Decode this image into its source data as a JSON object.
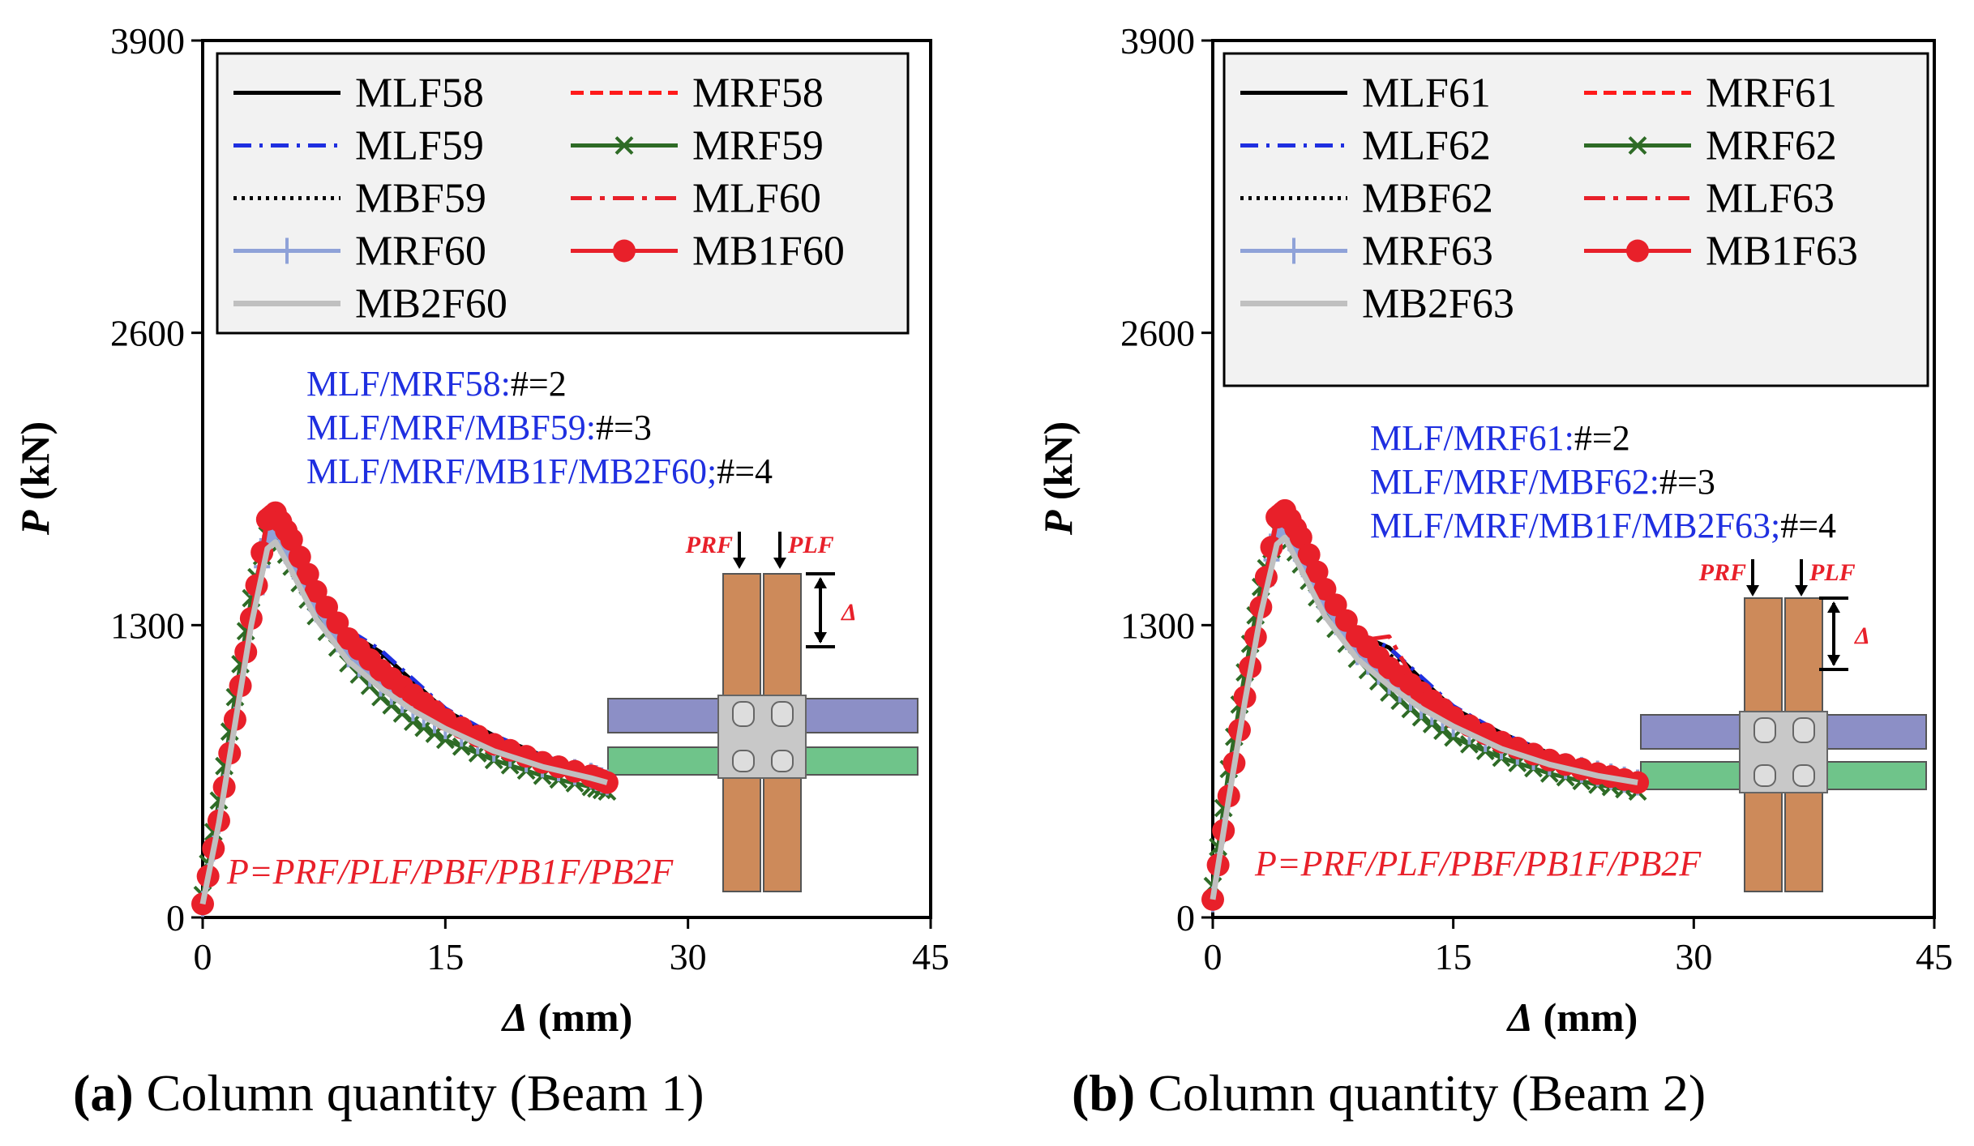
{
  "chart_data": [
    {
      "type": "line",
      "caption_letter": "(a)",
      "caption_text": " Column quantity (Beam 1)",
      "xlabel_symbol": "Δ",
      "xlabel_unit": " (mm)",
      "ylabel_symbol": "P",
      "ylabel_unit": " (kN)",
      "xlim": [
        0,
        45
      ],
      "ylim": [
        0,
        3900
      ],
      "xticks": [
        "0",
        "15",
        "30",
        "45"
      ],
      "yticks": [
        "0",
        "1300",
        "2600",
        "3900"
      ],
      "legend": [
        "MLF58",
        "MRF58",
        "MLF59",
        "MRF59",
        "MBF59",
        "MLF60",
        "MRF60",
        "MB1F60",
        "MB2F60"
      ],
      "annotations": [
        {
          "label": "MLF/MRF58:",
          "value": "#=2"
        },
        {
          "label": "MLF/MRF/MBF59:",
          "value": "#=3"
        },
        {
          "label": "MLF/MRF/MB1F/MB2F60;",
          "value": "#=4"
        }
      ],
      "equation": "P=PRF/PLF/PBF/PB1F/PB2F",
      "inset_labels": {
        "right": "PRF",
        "left": "PLF",
        "disp": "Δ"
      },
      "series": [
        {
          "name": "MLF58",
          "x": [
            0,
            1,
            2,
            3,
            4,
            4.5,
            5.5,
            7,
            9,
            11,
            13,
            15,
            18,
            21,
            24,
            25
          ],
          "y": [
            60,
            450,
            900,
            1350,
            1720,
            1760,
            1620,
            1420,
            1270,
            1180,
            1050,
            920,
            810,
            720,
            650,
            620
          ]
        },
        {
          "name": "MRF58",
          "x": [
            0,
            1,
            2,
            3,
            4,
            4.5,
            5.5,
            7,
            9,
            11,
            13,
            15,
            18,
            21,
            24,
            25
          ],
          "y": [
            60,
            430,
            880,
            1330,
            1700,
            1740,
            1600,
            1400,
            1210,
            1080,
            960,
            870,
            770,
            690,
            630,
            600
          ]
        },
        {
          "name": "MLF59",
          "x": [
            0,
            1,
            2,
            3,
            4,
            4.5,
            5.5,
            7,
            9,
            11,
            13,
            15,
            18,
            21,
            24,
            25
          ],
          "y": [
            60,
            450,
            900,
            1350,
            1710,
            1750,
            1620,
            1420,
            1280,
            1190,
            1060,
            930,
            810,
            720,
            650,
            620
          ]
        },
        {
          "name": "MRF59",
          "x": [
            0,
            1,
            2,
            3,
            4,
            4.5,
            5.5,
            7,
            9,
            11,
            13,
            15,
            18,
            21,
            24,
            25
          ],
          "y": [
            100,
            520,
            980,
            1420,
            1700,
            1720,
            1560,
            1340,
            1130,
            980,
            870,
            790,
            700,
            630,
            580,
            560
          ]
        },
        {
          "name": "MBF59",
          "x": [
            0,
            1,
            2,
            3,
            4,
            4.5,
            5.5,
            7,
            9,
            11,
            13,
            15,
            18,
            21,
            24,
            25
          ],
          "y": [
            60,
            440,
            890,
            1340,
            1705,
            1745,
            1610,
            1410,
            1260,
            1160,
            1040,
            910,
            800,
            715,
            645,
            615
          ]
        },
        {
          "name": "MLF60",
          "x": [
            0,
            1,
            2,
            3,
            4,
            4.5,
            5.5,
            7,
            9,
            11,
            13,
            15,
            18,
            21,
            24,
            25
          ],
          "y": [
            60,
            440,
            890,
            1340,
            1720,
            1770,
            1640,
            1430,
            1240,
            1120,
            1010,
            900,
            780,
            700,
            640,
            610
          ]
        },
        {
          "name": "MRF60",
          "x": [
            0,
            1,
            2,
            3,
            4,
            4.5,
            5.5,
            7,
            9,
            11,
            13,
            15,
            18,
            21,
            24,
            25
          ],
          "y": [
            60,
            430,
            880,
            1320,
            1680,
            1720,
            1580,
            1370,
            1170,
            1040,
            930,
            850,
            750,
            680,
            630,
            600
          ]
        },
        {
          "name": "MB1F60",
          "x": [
            0,
            1,
            2,
            3,
            4,
            4.5,
            5.5,
            7,
            9,
            11,
            13,
            15,
            18,
            21,
            24,
            25
          ],
          "y": [
            60,
            430,
            880,
            1330,
            1770,
            1800,
            1680,
            1450,
            1240,
            1100,
            990,
            880,
            770,
            690,
            630,
            600
          ]
        },
        {
          "name": "MB2F60",
          "x": [
            0,
            1,
            2,
            3,
            4,
            4.5,
            5.5,
            7,
            9,
            11,
            13,
            15,
            18,
            21,
            24,
            25
          ],
          "y": [
            60,
            420,
            860,
            1300,
            1640,
            1670,
            1540,
            1330,
            1140,
            1020,
            920,
            840,
            740,
            670,
            620,
            600
          ]
        }
      ]
    },
    {
      "type": "line",
      "caption_letter": "(b)",
      "caption_text": " Column quantity (Beam 2)",
      "xlabel_symbol": "Δ",
      "xlabel_unit": " (mm)",
      "ylabel_symbol": "P",
      "ylabel_unit": " (kN)",
      "xlim": [
        0,
        45
      ],
      "ylim": [
        0,
        3900
      ],
      "xticks": [
        "0",
        "15",
        "30",
        "45"
      ],
      "yticks": [
        "0",
        "1300",
        "2600",
        "3900"
      ],
      "legend": [
        "MLF61",
        "MRF61",
        "MLF62",
        "MRF62",
        "MBF62",
        "MLF63",
        "MRF63",
        "MB1F63",
        "MB2F63"
      ],
      "annotations": [
        {
          "label": "MLF/MRF61:",
          "value": "#=2"
        },
        {
          "label": "MLF/MRF/MBF62:",
          "value": "#=3"
        },
        {
          "label": "MLF/MRF/MB1F/MB2F63;",
          "value": "#=4"
        }
      ],
      "equation": "P=PRF/PLF/PBF/PB1F/PB2F",
      "inset_labels": {
        "right": "PRF",
        "left": "PLF",
        "disp": "Δ"
      },
      "series": [
        {
          "name": "MLF61",
          "x": [
            0,
            1,
            2,
            3,
            4,
            4.5,
            5.5,
            7,
            9,
            11,
            13,
            15,
            18,
            21,
            24,
            26.5
          ],
          "y": [
            80,
            560,
            1000,
            1400,
            1740,
            1770,
            1630,
            1430,
            1260,
            1200,
            1060,
            930,
            820,
            730,
            660,
            620
          ]
        },
        {
          "name": "MRF61",
          "x": [
            0,
            1,
            2,
            3,
            4,
            4.5,
            5.5,
            7,
            9,
            11,
            13,
            15,
            18,
            21,
            24,
            26.5
          ],
          "y": [
            80,
            540,
            980,
            1380,
            1720,
            1750,
            1610,
            1400,
            1220,
            1100,
            980,
            880,
            780,
            700,
            640,
            600
          ]
        },
        {
          "name": "MLF62",
          "x": [
            0,
            1,
            2,
            3,
            4,
            4.5,
            5.5,
            7,
            9,
            11,
            13,
            15,
            18,
            21,
            24,
            26.5
          ],
          "y": [
            80,
            560,
            1000,
            1400,
            1730,
            1760,
            1630,
            1430,
            1270,
            1200,
            1070,
            940,
            820,
            730,
            660,
            620
          ]
        },
        {
          "name": "MRF62",
          "x": [
            0,
            1,
            2,
            3,
            4,
            4.5,
            5.5,
            7,
            9,
            11,
            13,
            15,
            18,
            21,
            24,
            26.5
          ],
          "y": [
            140,
            660,
            1090,
            1470,
            1720,
            1730,
            1570,
            1350,
            1150,
            1000,
            890,
            800,
            710,
            640,
            590,
            560
          ]
        },
        {
          "name": "MBF62",
          "x": [
            0,
            1,
            2,
            3,
            4,
            4.5,
            5.5,
            7,
            9,
            11,
            13,
            15,
            18,
            21,
            24,
            26.5
          ],
          "y": [
            80,
            550,
            990,
            1390,
            1725,
            1755,
            1620,
            1420,
            1250,
            1170,
            1050,
            920,
            810,
            725,
            655,
            615
          ]
        },
        {
          "name": "MLF63",
          "x": [
            0,
            1,
            2,
            3,
            4,
            4.5,
            5.5,
            7,
            9,
            11,
            13,
            15,
            18,
            21,
            24,
            26.5
          ],
          "y": [
            80,
            550,
            990,
            1390,
            1740,
            1780,
            1650,
            1440,
            1230,
            1250,
            1000,
            880,
            770,
            690,
            640,
            590
          ]
        },
        {
          "name": "MRF63",
          "x": [
            0,
            1,
            2,
            3,
            4,
            4.5,
            5.5,
            7,
            9,
            11,
            13,
            15,
            18,
            21,
            24,
            26.5
          ],
          "y": [
            80,
            540,
            970,
            1370,
            1700,
            1730,
            1590,
            1380,
            1180,
            1050,
            940,
            860,
            760,
            690,
            640,
            600
          ]
        },
        {
          "name": "MB1F63",
          "x": [
            0,
            1,
            2,
            3,
            4,
            4.5,
            5.5,
            7,
            9,
            11,
            13,
            15,
            18,
            21,
            24,
            26.5
          ],
          "y": [
            80,
            540,
            980,
            1380,
            1780,
            1810,
            1690,
            1460,
            1250,
            1110,
            1000,
            890,
            780,
            700,
            640,
            600
          ]
        },
        {
          "name": "MB2F63",
          "x": [
            0,
            1,
            2,
            3,
            4,
            4.5,
            5.5,
            7,
            9,
            11,
            13,
            15,
            18,
            21,
            24,
            26.5
          ],
          "y": [
            80,
            530,
            960,
            1350,
            1660,
            1690,
            1550,
            1340,
            1150,
            1030,
            930,
            850,
            750,
            680,
            630,
            600
          ]
        }
      ]
    }
  ],
  "styles": {
    "MLF": {
      "color": "#000000",
      "dash": "",
      "marker": ""
    },
    "MRF": {
      "color": "#ff1a1a",
      "dash": "16 8",
      "marker": ""
    },
    "MLF2": {
      "color": "#1f2fe0",
      "dash": "22 10 4 10",
      "marker": ""
    },
    "MRF2": {
      "color": "#2e6b26",
      "dash": "",
      "marker": "x"
    },
    "MBF": {
      "color": "#000000",
      "dash": "4 6",
      "marker": ""
    },
    "MLF3": {
      "color": "#e8202a",
      "dash": "26 10 6 10",
      "marker": ""
    },
    "MRF3": {
      "color": "#8fa2d8",
      "dash": "",
      "marker": "plus"
    },
    "MB1F": {
      "color": "#e8202a",
      "dash": "",
      "marker": "dot"
    },
    "MB2F": {
      "color": "#c0c0c0",
      "dash": "",
      "marker": ""
    },
    "annotation_blue": "#1f2fe0",
    "column_color": "#cd8a5a",
    "beam1_color": "#8c8fc6",
    "beam2_color": "#6fc48a"
  }
}
